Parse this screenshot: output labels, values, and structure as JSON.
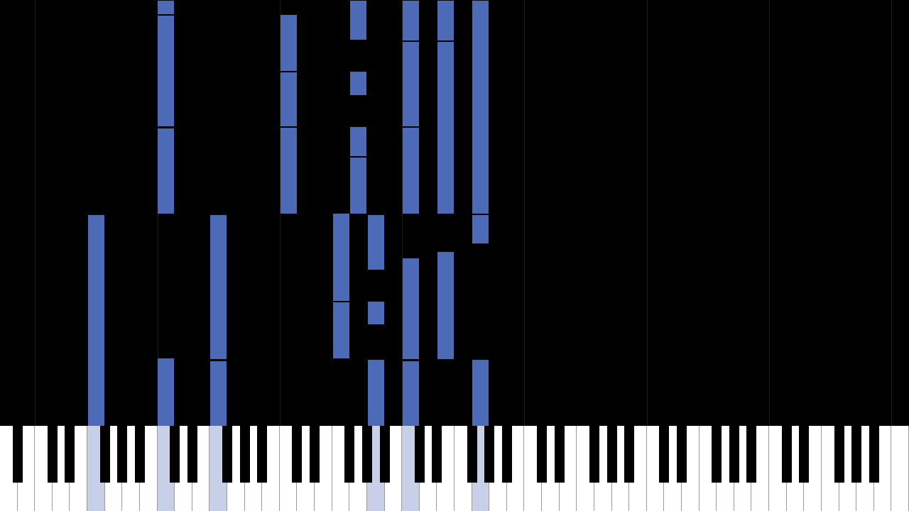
{
  "theme": {
    "background": "#000000",
    "note_color": "#4c6ab5",
    "pressed_key_color": "#c8d0e8",
    "white_key": "#ffffff",
    "black_key": "#000000"
  },
  "keyboard": {
    "white_key_count": 52,
    "pressed_white_keys": [
      5,
      9,
      12,
      21,
      23,
      27
    ]
  },
  "notes": [
    {
      "col": 9,
      "start": 0.0,
      "end": 0.033
    },
    {
      "col": 9,
      "start": 0.035,
      "end": 0.297
    },
    {
      "col": 9,
      "start": 0.3,
      "end": 0.502
    },
    {
      "col": 9,
      "start": 0.84,
      "end": 1.0
    },
    {
      "col": 16,
      "start": 0.033,
      "end": 0.167
    },
    {
      "col": 16,
      "start": 0.168,
      "end": 0.297
    },
    {
      "col": 16,
      "start": 0.299,
      "end": 0.502
    },
    {
      "col": 20,
      "start": 0.0,
      "end": 0.093
    },
    {
      "col": 20,
      "start": 0.167,
      "end": 0.223
    },
    {
      "col": 20,
      "start": 0.297,
      "end": 0.367
    },
    {
      "col": 20,
      "start": 0.369,
      "end": 0.502
    },
    {
      "col": 23,
      "start": 0.0,
      "end": 0.095
    },
    {
      "col": 23,
      "start": 0.097,
      "end": 0.297
    },
    {
      "col": 23,
      "start": 0.299,
      "end": 0.502
    },
    {
      "col": 23,
      "start": 0.605,
      "end": 0.843
    },
    {
      "col": 23,
      "start": 0.846,
      "end": 1.0
    },
    {
      "col": 25,
      "start": 0.0,
      "end": 0.095
    },
    {
      "col": 25,
      "start": 0.097,
      "end": 0.502
    },
    {
      "col": 25,
      "start": 0.59,
      "end": 0.843
    },
    {
      "col": 27,
      "start": 0.0,
      "end": 0.502
    },
    {
      "col": 27,
      "start": 0.504,
      "end": 0.572
    },
    {
      "col": 27,
      "start": 0.843,
      "end": 1.0
    },
    {
      "col": 5,
      "start": 0.503,
      "end": 1.0
    },
    {
      "col": 12,
      "start": 0.503,
      "end": 0.843
    },
    {
      "col": 12,
      "start": 0.846,
      "end": 1.0
    },
    {
      "col": 19,
      "start": 0.5,
      "end": 0.707
    },
    {
      "col": 19,
      "start": 0.709,
      "end": 0.843
    },
    {
      "col": 21,
      "start": 0.503,
      "end": 0.633
    },
    {
      "col": 21,
      "start": 0.707,
      "end": 0.762
    },
    {
      "col": 21,
      "start": 0.843,
      "end": 1.0
    }
  ]
}
